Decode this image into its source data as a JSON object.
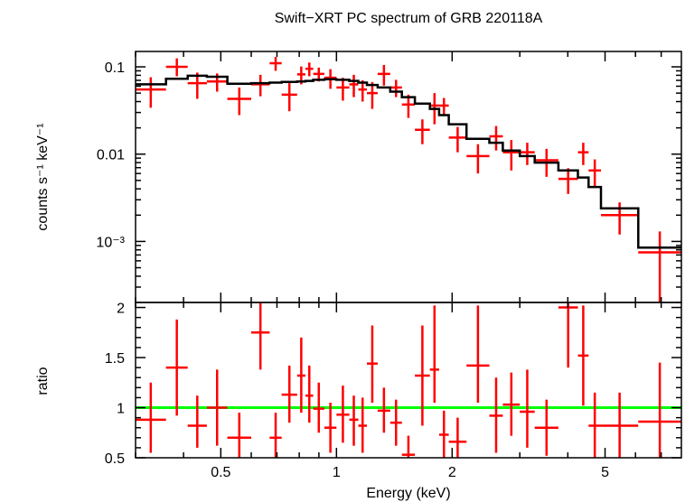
{
  "chart_data": [
    {
      "type": "scatter",
      "panel": "spectrum",
      "title": "Swift−XRT PC spectrum of GRB 220118A",
      "xlabel": "Energy (keV)",
      "ylabel": "counts s⁻¹ keV⁻¹",
      "xscale": "log",
      "yscale": "log",
      "xlim": [
        0.3,
        7.9
      ],
      "ylim": [
        0.0002,
        0.15
      ],
      "yticks": [
        {
          "value": 0.1,
          "label": "0.1"
        },
        {
          "value": 0.01,
          "label": "0.01"
        },
        {
          "value": 0.001,
          "label": "10⁻³"
        }
      ],
      "data": {
        "name": "",
        "color": "#ff0000",
        "points": [
          {
            "xlo": 0.3,
            "xhi": 0.36,
            "y": 0.055,
            "ylo": 0.034,
            "yhi": 0.076
          },
          {
            "xlo": 0.36,
            "xhi": 0.41,
            "y": 0.1,
            "ylo": 0.078,
            "yhi": 0.125
          },
          {
            "xlo": 0.41,
            "xhi": 0.46,
            "y": 0.065,
            "ylo": 0.043,
            "yhi": 0.086
          },
          {
            "xlo": 0.46,
            "xhi": 0.52,
            "y": 0.068,
            "ylo": 0.052,
            "yhi": 0.084
          },
          {
            "xlo": 0.52,
            "xhi": 0.6,
            "y": 0.043,
            "ylo": 0.028,
            "yhi": 0.058
          },
          {
            "xlo": 0.6,
            "xhi": 0.67,
            "y": 0.063,
            "ylo": 0.046,
            "yhi": 0.081
          },
          {
            "xlo": 0.67,
            "xhi": 0.72,
            "y": 0.11,
            "ylo": 0.09,
            "yhi": 0.13
          },
          {
            "xlo": 0.72,
            "xhi": 0.79,
            "y": 0.048,
            "ylo": 0.031,
            "yhi": 0.065
          },
          {
            "xlo": 0.79,
            "xhi": 0.83,
            "y": 0.082,
            "ylo": 0.063,
            "yhi": 0.101
          },
          {
            "xlo": 0.83,
            "xhi": 0.87,
            "y": 0.095,
            "ylo": 0.078,
            "yhi": 0.112
          },
          {
            "xlo": 0.87,
            "xhi": 0.93,
            "y": 0.083,
            "ylo": 0.068,
            "yhi": 0.098
          },
          {
            "xlo": 0.93,
            "xhi": 1.0,
            "y": 0.075,
            "ylo": 0.056,
            "yhi": 0.094
          },
          {
            "xlo": 1.0,
            "xhi": 1.08,
            "y": 0.058,
            "ylo": 0.041,
            "yhi": 0.075
          },
          {
            "xlo": 1.08,
            "xhi": 1.14,
            "y": 0.063,
            "ylo": 0.045,
            "yhi": 0.081
          },
          {
            "xlo": 1.14,
            "xhi": 1.2,
            "y": 0.055,
            "ylo": 0.04,
            "yhi": 0.07
          },
          {
            "xlo": 1.2,
            "xhi": 1.28,
            "y": 0.05,
            "ylo": 0.033,
            "yhi": 0.067
          },
          {
            "xlo": 1.28,
            "xhi": 1.38,
            "y": 0.083,
            "ylo": 0.061,
            "yhi": 0.105
          },
          {
            "xlo": 1.38,
            "xhi": 1.48,
            "y": 0.058,
            "ylo": 0.045,
            "yhi": 0.071
          },
          {
            "xlo": 1.48,
            "xhi": 1.6,
            "y": 0.037,
            "ylo": 0.026,
            "yhi": 0.048
          },
          {
            "xlo": 1.6,
            "xhi": 1.75,
            "y": 0.019,
            "ylo": 0.013,
            "yhi": 0.025
          },
          {
            "xlo": 1.75,
            "xhi": 1.85,
            "y": 0.036,
            "ylo": 0.022,
            "yhi": 0.05
          },
          {
            "xlo": 1.85,
            "xhi": 1.96,
            "y": 0.036,
            "ylo": 0.028,
            "yhi": 0.044
          },
          {
            "xlo": 1.96,
            "xhi": 2.18,
            "y": 0.0155,
            "ylo": 0.0105,
            "yhi": 0.0205
          },
          {
            "xlo": 2.18,
            "xhi": 2.5,
            "y": 0.0095,
            "ylo": 0.006,
            "yhi": 0.013
          },
          {
            "xlo": 2.5,
            "xhi": 2.71,
            "y": 0.016,
            "ylo": 0.011,
            "yhi": 0.021
          },
          {
            "xlo": 2.71,
            "xhi": 3.0,
            "y": 0.0105,
            "ylo": 0.0065,
            "yhi": 0.0145
          },
          {
            "xlo": 3.0,
            "xhi": 3.28,
            "y": 0.0105,
            "ylo": 0.0075,
            "yhi": 0.0135
          },
          {
            "xlo": 3.28,
            "xhi": 3.78,
            "y": 0.0085,
            "ylo": 0.0055,
            "yhi": 0.0115
          },
          {
            "xlo": 3.78,
            "xhi": 4.25,
            "y": 0.0052,
            "ylo": 0.0035,
            "yhi": 0.0069
          },
          {
            "xlo": 4.25,
            "xhi": 4.53,
            "y": 0.0105,
            "ylo": 0.0075,
            "yhi": 0.0135
          },
          {
            "xlo": 4.53,
            "xhi": 4.88,
            "y": 0.0065,
            "ylo": 0.0043,
            "yhi": 0.0087
          },
          {
            "xlo": 4.88,
            "xhi": 6.1,
            "y": 0.002,
            "ylo": 0.0012,
            "yhi": 0.0028
          },
          {
            "xlo": 6.1,
            "xhi": 7.9,
            "y": 0.00075,
            "ylo": 0.0002,
            "yhi": 0.0013
          }
        ]
      },
      "model": {
        "name": "",
        "color": "#000000",
        "values": [
          0.063,
          0.073,
          0.079,
          0.077,
          0.064,
          0.065,
          0.066,
          0.067,
          0.068,
          0.069,
          0.071,
          0.072,
          0.071,
          0.069,
          0.066,
          0.062,
          0.058,
          0.052,
          0.045,
          0.038,
          0.033,
          0.028,
          0.022,
          0.015,
          0.0135,
          0.011,
          0.0095,
          0.008,
          0.0065,
          0.0054,
          0.0042,
          0.0024,
          0.00085
        ]
      }
    },
    {
      "type": "scatter",
      "panel": "ratio",
      "xlabel": "Energy (keV)",
      "ylabel": "ratio",
      "xscale": "log",
      "xlim": [
        0.3,
        7.9
      ],
      "ylim": [
        0.5,
        2.05
      ],
      "xticks": [
        {
          "value": 0.5,
          "label": "0.5"
        },
        {
          "value": 1,
          "label": "1"
        },
        {
          "value": 2,
          "label": "2"
        },
        {
          "value": 5,
          "label": "5"
        }
      ],
      "yticks": [
        {
          "value": 0.5,
          "label": "0.5"
        },
        {
          "value": 1,
          "label": "1"
        },
        {
          "value": 1.5,
          "label": "1.5"
        },
        {
          "value": 2,
          "label": "2"
        }
      ],
      "reference_line": {
        "y": 1,
        "color": "#00ff00"
      },
      "data": {
        "name": "",
        "color": "#ff0000",
        "points": [
          {
            "xlo": 0.3,
            "xhi": 0.36,
            "y": 0.88,
            "ylo": 0.55,
            "yhi": 1.25
          },
          {
            "xlo": 0.36,
            "xhi": 0.41,
            "y": 1.4,
            "ylo": 0.92,
            "yhi": 1.88
          },
          {
            "xlo": 0.41,
            "xhi": 0.46,
            "y": 0.82,
            "ylo": 0.6,
            "yhi": 1.12
          },
          {
            "xlo": 0.46,
            "xhi": 0.52,
            "y": 1.0,
            "ylo": 0.62,
            "yhi": 1.38
          },
          {
            "xlo": 0.52,
            "xhi": 0.6,
            "y": 0.7,
            "ylo": 0.45,
            "yhi": 0.95
          },
          {
            "xlo": 0.6,
            "xhi": 0.67,
            "y": 1.75,
            "ylo": 1.38,
            "yhi": 2.12
          },
          {
            "xlo": 0.67,
            "xhi": 0.72,
            "y": 0.7,
            "ylo": 0.45,
            "yhi": 0.95
          },
          {
            "xlo": 0.72,
            "xhi": 0.79,
            "y": 1.13,
            "ylo": 0.85,
            "yhi": 1.42
          },
          {
            "xlo": 0.79,
            "xhi": 0.83,
            "y": 1.32,
            "ylo": 0.95,
            "yhi": 1.7
          },
          {
            "xlo": 0.83,
            "xhi": 0.87,
            "y": 1.12,
            "ylo": 0.85,
            "yhi": 1.42
          },
          {
            "xlo": 0.87,
            "xhi": 0.93,
            "y": 0.99,
            "ylo": 0.75,
            "yhi": 1.25
          },
          {
            "xlo": 0.93,
            "xhi": 1.0,
            "y": 0.8,
            "ylo": 0.55,
            "yhi": 1.05
          },
          {
            "xlo": 1.0,
            "xhi": 1.08,
            "y": 0.93,
            "ylo": 0.65,
            "yhi": 1.22
          },
          {
            "xlo": 1.08,
            "xhi": 1.14,
            "y": 0.88,
            "ylo": 0.62,
            "yhi": 1.12
          },
          {
            "xlo": 1.14,
            "xhi": 1.2,
            "y": 0.82,
            "ylo": 0.55,
            "yhi": 1.1
          },
          {
            "xlo": 1.2,
            "xhi": 1.28,
            "y": 1.44,
            "ylo": 1.05,
            "yhi": 1.82
          },
          {
            "xlo": 1.28,
            "xhi": 1.38,
            "y": 0.97,
            "ylo": 0.75,
            "yhi": 1.2
          },
          {
            "xlo": 1.38,
            "xhi": 1.48,
            "y": 0.85,
            "ylo": 0.62,
            "yhi": 1.08
          },
          {
            "xlo": 1.48,
            "xhi": 1.6,
            "y": 0.53,
            "ylo": 0.35,
            "yhi": 0.72
          },
          {
            "xlo": 1.6,
            "xhi": 1.75,
            "y": 1.32,
            "ylo": 0.82,
            "yhi": 1.82
          },
          {
            "xlo": 1.75,
            "xhi": 1.85,
            "y": 1.38,
            "ylo": 1.05,
            "yhi": 2.02
          },
          {
            "xlo": 1.85,
            "xhi": 1.96,
            "y": 0.73,
            "ylo": 0.5,
            "yhi": 0.97
          },
          {
            "xlo": 1.96,
            "xhi": 2.18,
            "y": 0.66,
            "ylo": 0.42,
            "yhi": 0.9
          },
          {
            "xlo": 2.18,
            "xhi": 2.5,
            "y": 1.42,
            "ylo": 1.05,
            "yhi": 2.02
          },
          {
            "xlo": 2.5,
            "xhi": 2.71,
            "y": 0.92,
            "ylo": 0.55,
            "yhi": 1.3
          },
          {
            "xlo": 2.71,
            "xhi": 3.0,
            "y": 1.03,
            "ylo": 0.72,
            "yhi": 1.35
          },
          {
            "xlo": 3.0,
            "xhi": 3.28,
            "y": 0.96,
            "ylo": 0.6,
            "yhi": 1.38
          },
          {
            "xlo": 3.28,
            "xhi": 3.78,
            "y": 0.8,
            "ylo": 0.52,
            "yhi": 1.08
          },
          {
            "xlo": 3.78,
            "xhi": 4.25,
            "y": 2.0,
            "ylo": 1.4,
            "yhi": 2.05
          },
          {
            "xlo": 4.25,
            "xhi": 4.53,
            "y": 1.52,
            "ylo": 1.02,
            "yhi": 2.02
          },
          {
            "xlo": 4.53,
            "xhi": 4.88,
            "y": 0.82,
            "ylo": 0.5,
            "yhi": 1.15
          },
          {
            "xlo": 4.88,
            "xhi": 6.1,
            "y": 0.82,
            "ylo": 0.5,
            "yhi": 1.15
          },
          {
            "xlo": 6.1,
            "xhi": 7.9,
            "y": 0.86,
            "ylo": 0.25,
            "yhi": 1.45
          }
        ]
      }
    }
  ]
}
